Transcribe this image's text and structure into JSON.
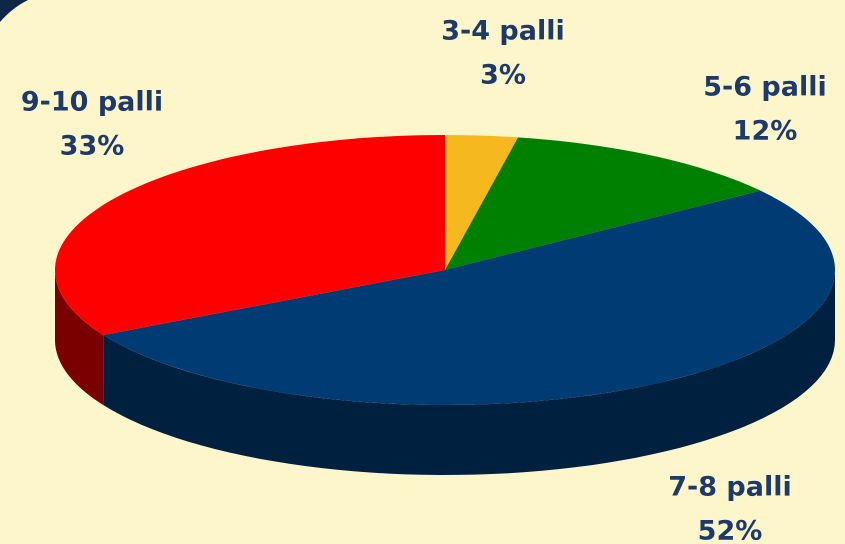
{
  "chart_data": {
    "type": "pie",
    "categories": [
      "3-4 palli",
      "5-6 palli",
      "7-8 palli",
      "9-10 palli"
    ],
    "values": [
      3,
      12,
      52,
      33
    ],
    "value_labels": [
      "3%",
      "12%",
      "52%",
      "33%"
    ],
    "colors": [
      "#f5b91f",
      "#008000",
      "#003b73",
      "#ff0000"
    ],
    "side_colors": [
      "#a07a10",
      "#004d00",
      "#00203f",
      "#7a0000"
    ]
  }
}
